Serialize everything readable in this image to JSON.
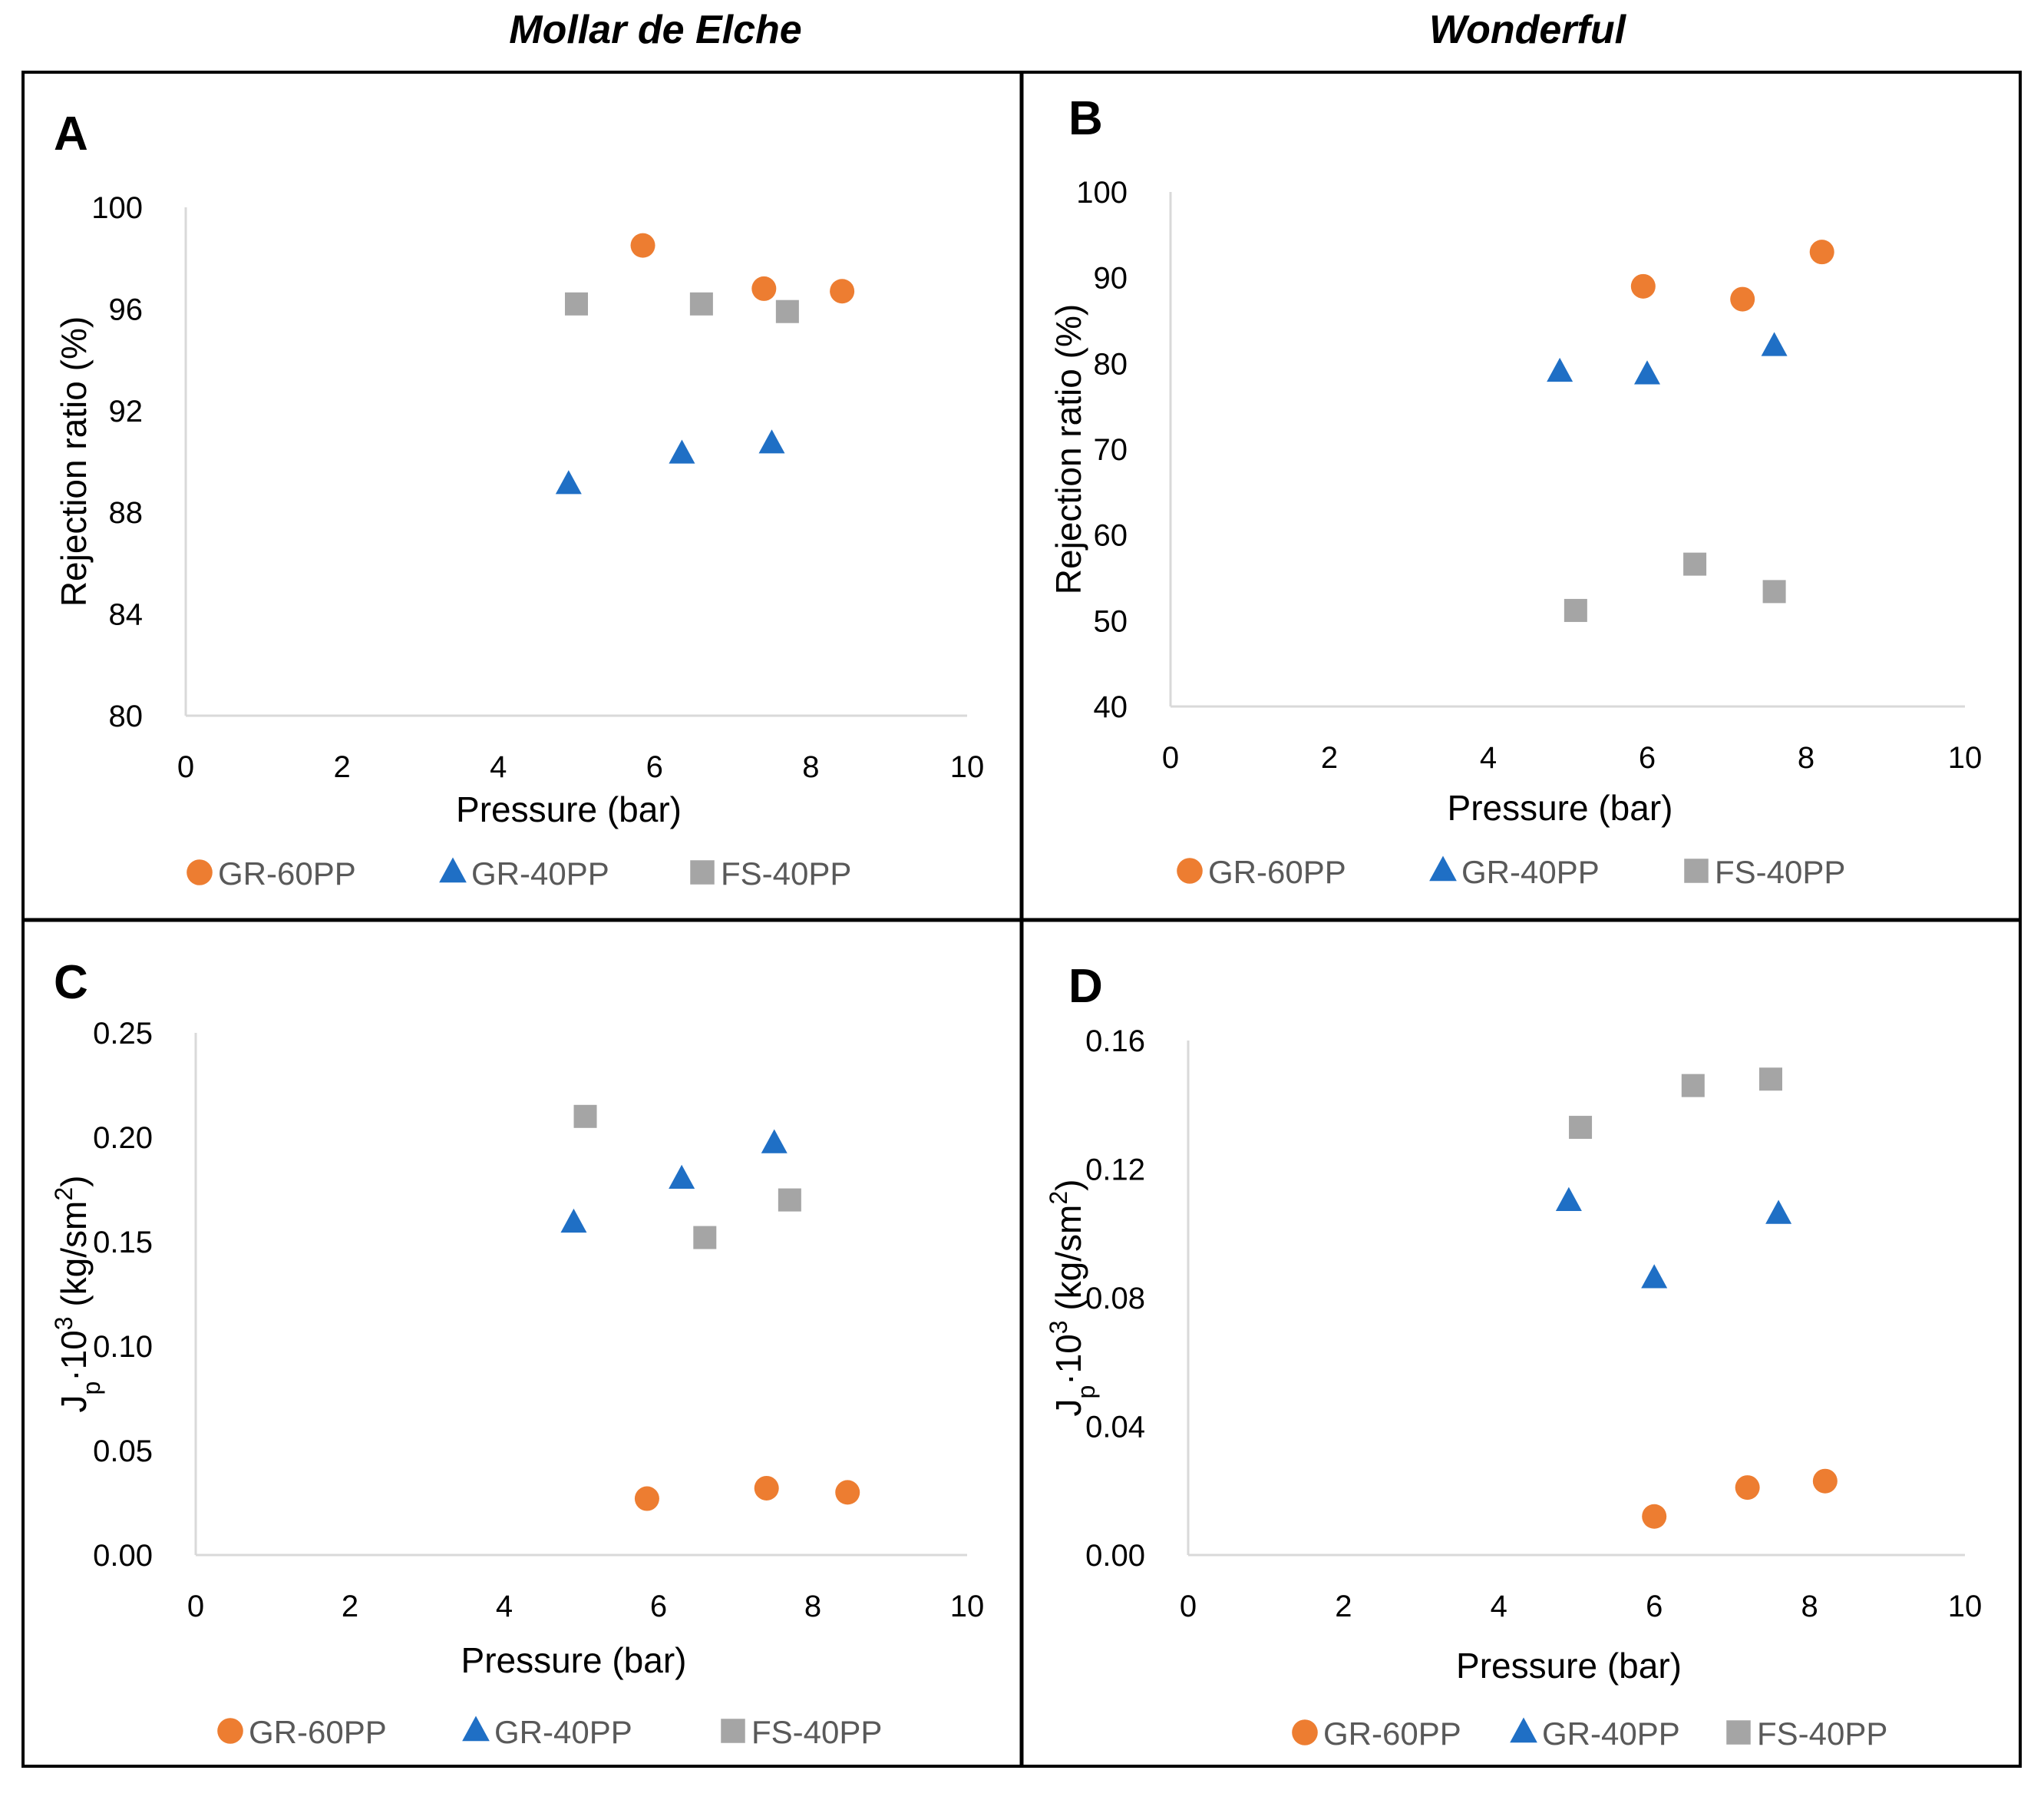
{
  "colors": {
    "GR-60PP": "#ED7D31",
    "GR-40PP": "#1F6FC5",
    "FS-40PP": "#A5A5A5"
  },
  "column_titles": [
    "Mollar de Elche",
    "Wonderful"
  ],
  "chart_data": [
    {
      "type": "scatter",
      "panel": "A",
      "xlabel": "Pressure (bar)",
      "ylabel": "Rejection ratio (%)",
      "ylabel_html": null,
      "xlim": [
        0,
        10
      ],
      "ylim": [
        80,
        100
      ],
      "xticks": [
        0,
        2,
        4,
        6,
        8,
        10
      ],
      "yticks": [
        80,
        84,
        88,
        92,
        96,
        100
      ],
      "ytick_labels": [
        "80",
        "84",
        "88",
        "92",
        "96",
        "100"
      ],
      "legend": [
        "GR-60PP",
        "GR-40PP",
        "FS-40PP"
      ],
      "series": [
        {
          "name": "GR-60PP",
          "marker": "circle",
          "x": [
            5.85,
            7.4,
            8.4
          ],
          "y": [
            98.5,
            96.8,
            96.7
          ]
        },
        {
          "name": "GR-40PP",
          "marker": "triangle",
          "x": [
            4.9,
            6.35,
            7.5
          ],
          "y": [
            89.1,
            90.3,
            90.7
          ]
        },
        {
          "name": "FS-40PP",
          "marker": "square",
          "x": [
            5.0,
            6.6,
            7.7
          ],
          "y": [
            96.2,
            96.2,
            95.9
          ]
        }
      ]
    },
    {
      "type": "scatter",
      "panel": "B",
      "xlabel": "Pressure (bar)",
      "ylabel": "Rejection ratio (%)",
      "xlim": [
        0,
        10
      ],
      "ylim": [
        40,
        100
      ],
      "xticks": [
        0,
        2,
        4,
        6,
        8,
        10
      ],
      "yticks": [
        40,
        50,
        60,
        70,
        80,
        90,
        100
      ],
      "ytick_labels": [
        "40",
        "50",
        "60",
        "70",
        "80",
        "90",
        "100"
      ],
      "legend": [
        "GR-60PP",
        "GR-40PP",
        "FS-40PP"
      ],
      "series": [
        {
          "name": "GR-60PP",
          "marker": "circle",
          "x": [
            5.95,
            7.2,
            8.2
          ],
          "y": [
            89,
            87.5,
            93
          ]
        },
        {
          "name": "GR-40PP",
          "marker": "triangle",
          "x": [
            4.9,
            6.0,
            7.6
          ],
          "y": [
            79,
            78.7,
            82
          ]
        },
        {
          "name": "FS-40PP",
          "marker": "square",
          "x": [
            5.1,
            6.6,
            7.6
          ],
          "y": [
            51.2,
            56.6,
            53.4
          ]
        }
      ]
    },
    {
      "type": "scatter",
      "panel": "C",
      "xlabel": "Pressure (bar)",
      "ylabel": "Jp·10³ (kg/sm²)",
      "ylabel_parts": {
        "J": "J",
        "sub": "p",
        "mid": "·10",
        "sup": "3",
        "rest": " (kg/sm",
        "sup2": "2",
        "end": ")"
      },
      "xlim": [
        0,
        10
      ],
      "ylim": [
        0,
        0.25
      ],
      "xticks": [
        0,
        2,
        4,
        6,
        8,
        10
      ],
      "yticks": [
        0,
        0.05,
        0.1,
        0.15,
        0.2,
        0.25
      ],
      "ytick_labels": [
        "0.00",
        "0.05",
        "0.10",
        "0.15",
        "0.20",
        "0.25"
      ],
      "legend": [
        "GR-60PP",
        "GR-40PP",
        "FS-40PP"
      ],
      "series": [
        {
          "name": "GR-60PP",
          "marker": "circle",
          "x": [
            5.85,
            7.4,
            8.45
          ],
          "y": [
            0.027,
            0.032,
            0.03
          ]
        },
        {
          "name": "GR-40PP",
          "marker": "triangle",
          "x": [
            4.9,
            6.3,
            7.5
          ],
          "y": [
            0.159,
            0.18,
            0.197
          ]
        },
        {
          "name": "FS-40PP",
          "marker": "square",
          "x": [
            5.05,
            6.6,
            7.7
          ],
          "y": [
            0.21,
            0.152,
            0.17
          ]
        }
      ]
    },
    {
      "type": "scatter",
      "panel": "D",
      "xlabel": "Pressure (bar)",
      "ylabel": "Jp·10³ (kg/sm²)",
      "ylabel_parts": {
        "J": "J",
        "sub": "p",
        "mid": "·10",
        "sup": "3",
        "rest": " (kg/sm",
        "sup2": "2",
        "end": ")"
      },
      "xlim": [
        0,
        10
      ],
      "ylim": [
        0,
        0.16
      ],
      "xticks": [
        0,
        2,
        4,
        6,
        8,
        10
      ],
      "yticks": [
        0,
        0.04,
        0.08,
        0.12,
        0.16
      ],
      "ytick_labels": [
        "0.00",
        "0.04",
        "0.08",
        "0.12",
        "0.16"
      ],
      "legend": [
        "GR-60PP",
        "GR-40PP",
        "FS-40PP"
      ],
      "series": [
        {
          "name": "GR-60PP",
          "marker": "circle",
          "x": [
            6.0,
            7.2,
            8.2
          ],
          "y": [
            0.012,
            0.021,
            0.023
          ]
        },
        {
          "name": "GR-40PP",
          "marker": "triangle",
          "x": [
            4.9,
            6.0,
            7.6
          ],
          "y": [
            0.11,
            0.086,
            0.106
          ]
        },
        {
          "name": "FS-40PP",
          "marker": "square",
          "x": [
            5.05,
            6.5,
            7.5
          ],
          "y": [
            0.133,
            0.146,
            0.148
          ]
        }
      ]
    }
  ]
}
